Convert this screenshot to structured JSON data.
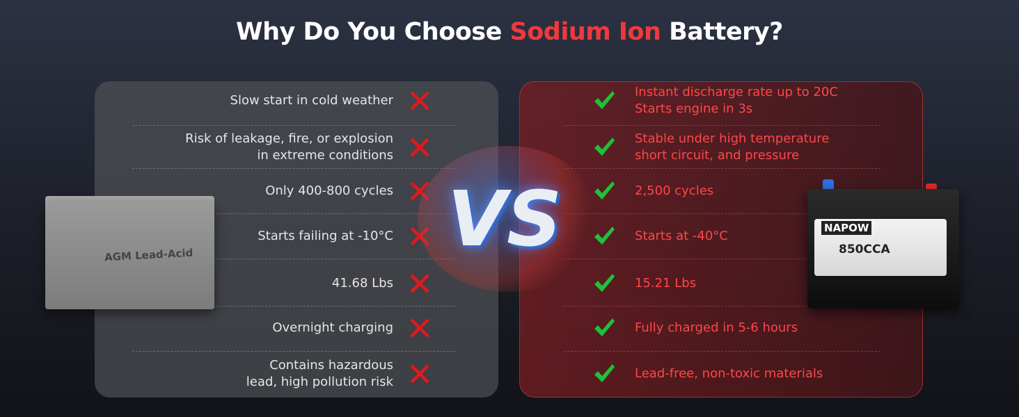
{
  "title": {
    "lead": "Why Do You Choose",
    "highlight": "Sodium Ion",
    "tail": "Battery?"
  },
  "left": {
    "battery_label": "AGM Lead-Acid",
    "items": [
      [
        "Slow start in cold weather"
      ],
      [
        "Risk of leakage, fire, or explosion",
        "in extreme conditions"
      ],
      [
        "Only 400-800 cycles"
      ],
      [
        "Starts failing at -10°C"
      ],
      [
        "41.68 Lbs"
      ],
      [
        "Overnight charging"
      ],
      [
        "Contains hazardous",
        "lead, high pollution risk"
      ]
    ]
  },
  "vs": "VS",
  "right": {
    "brand": "NAPOW",
    "model": "850CCA",
    "items": [
      [
        "Instant discharge rate up to 20C",
        "Starts engine in 3s"
      ],
      [
        "Stable under high temperature",
        "short circuit, and pressure"
      ],
      [
        "2,500 cycles"
      ],
      [
        "Starts at -40°C"
      ],
      [
        "15.21 Lbs"
      ],
      [
        "Fully charged in 5-6 hours"
      ],
      [
        "Lead-free, non-toxic materials"
      ]
    ]
  }
}
